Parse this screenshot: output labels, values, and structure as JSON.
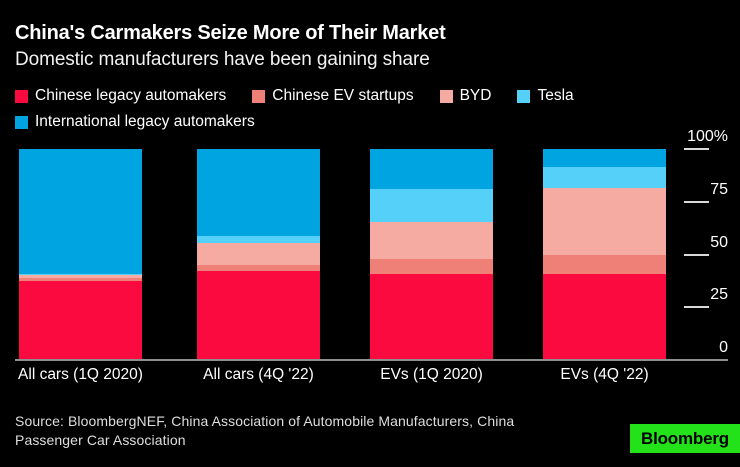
{
  "header": {
    "title": "China's Carmakers Seize More of Their Market",
    "subtitle": "Domestic manufacturers have been gaining share"
  },
  "chart_data": {
    "type": "bar",
    "stacked": true,
    "unit": "%",
    "title": "China's Carmakers Seize More of Their Market",
    "subtitle": "Domestic manufacturers have been gaining share",
    "categories": [
      "All cars (1Q 2020)",
      "All cars (4Q '22)",
      "EVs (1Q 2020)",
      "EVs (4Q '22)"
    ],
    "series": [
      {
        "name": "Chinese legacy automakers",
        "color": "#fa0a3e",
        "values": [
          37.5,
          42.0,
          41.0,
          41.0
        ]
      },
      {
        "name": "Chinese EV startups",
        "color": "#ef8077",
        "values": [
          1.5,
          3.0,
          7.0,
          9.0
        ]
      },
      {
        "name": "BYD",
        "color": "#f5aba2",
        "values": [
          1.5,
          10.5,
          17.5,
          31.5
        ]
      },
      {
        "name": "Tesla",
        "color": "#55d0f8",
        "values": [
          0.5,
          3.5,
          15.5,
          10.0
        ]
      },
      {
        "name": "International legacy automakers",
        "color": "#00a4e0",
        "values": [
          59.0,
          41.0,
          19.0,
          8.5
        ]
      }
    ],
    "y_axis": {
      "min": 0,
      "max": 100,
      "ticks": [
        {
          "label": "100%",
          "value": 100
        },
        {
          "label": "75",
          "value": 75
        },
        {
          "label": "50",
          "value": 50
        },
        {
          "label": "25",
          "value": 25
        },
        {
          "label": "0",
          "value": 0
        }
      ]
    },
    "legend_position": "top",
    "grid": false,
    "background": "#000000"
  },
  "footer": {
    "source_line1": "Source: BloombergNEF, China Association of Automobile Manufacturers, China",
    "source_line2": "Passenger Car Association",
    "logo_text": "Bloomberg",
    "logo_color": "#23e21a"
  },
  "colors": {
    "background": "#000000",
    "text": "#ffffff",
    "axis_line": "#8f8f8f",
    "tick": "#d9d9d9",
    "source_text": "#dedede"
  }
}
